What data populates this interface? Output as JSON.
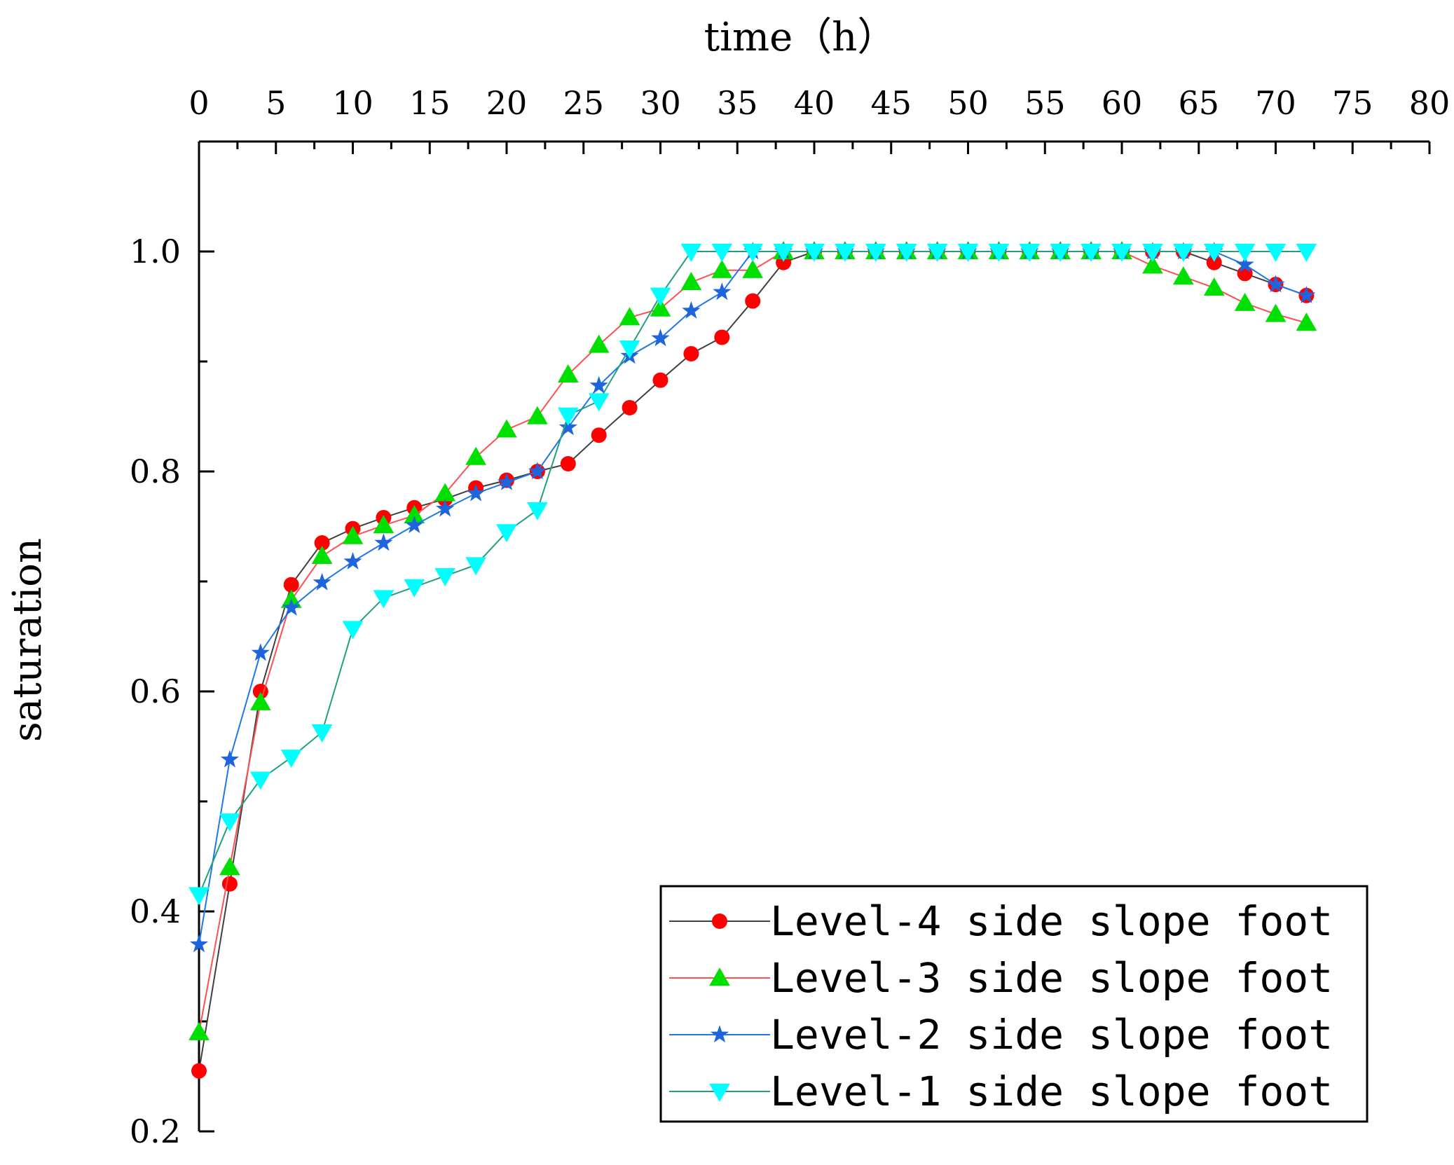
{
  "chart_data": {
    "type": "line",
    "title": "",
    "xlabel": "time（h）",
    "ylabel": "saturation",
    "xlim": [
      0,
      80
    ],
    "ylim": [
      0.2,
      1.1
    ],
    "x_ticks": [
      "0",
      "5",
      "10",
      "15",
      "20",
      "25",
      "30",
      "35",
      "40",
      "45",
      "50",
      "55",
      "60",
      "65",
      "70",
      "75",
      "80"
    ],
    "y_ticks": [
      "0.2",
      "0.4",
      "0.6",
      "0.8",
      "1.0"
    ],
    "x_axis_position": "top",
    "grid": false,
    "legend_position": "bottom-right",
    "x": [
      0,
      2,
      4,
      6,
      8,
      10,
      12,
      14,
      16,
      18,
      20,
      22,
      24,
      26,
      28,
      30,
      32,
      34,
      36,
      38,
      40,
      42,
      44,
      46,
      48,
      50,
      52,
      54,
      56,
      58,
      60,
      62,
      64,
      66,
      68,
      70,
      72
    ],
    "series": [
      {
        "name": "Level-4 side slope foot",
        "color": "#FF0000",
        "line_color": "#404040",
        "marker": "circle",
        "values": [
          0.255,
          0.425,
          0.6,
          0.697,
          0.735,
          0.748,
          0.758,
          0.767,
          0.775,
          0.785,
          0.792,
          0.8,
          0.807,
          0.833,
          0.858,
          0.883,
          0.907,
          0.922,
          0.955,
          0.99,
          1.0,
          1.0,
          1.0,
          1.0,
          1.0,
          1.0,
          1.0,
          1.0,
          1.0,
          1.0,
          1.0,
          1.0,
          1.0,
          0.99,
          0.98,
          0.97,
          0.96
        ]
      },
      {
        "name": "Level-3 side slope foot",
        "color": "#00E000",
        "line_color": "#FF5050",
        "marker": "triangle-up",
        "values": [
          0.29,
          0.44,
          0.59,
          0.683,
          0.723,
          0.741,
          0.751,
          0.76,
          0.78,
          0.813,
          0.838,
          0.85,
          0.888,
          0.915,
          0.94,
          0.948,
          0.972,
          0.983,
          0.983,
          1.0,
          1.0,
          1.0,
          1.0,
          1.0,
          1.0,
          1.0,
          1.0,
          1.0,
          1.0,
          1.0,
          1.0,
          0.987,
          0.977,
          0.967,
          0.953,
          0.943,
          0.935
        ]
      },
      {
        "name": "Level-2 side slope foot",
        "color": "#1E64DC",
        "line_color": "#1E78E6",
        "marker": "star",
        "values": [
          0.37,
          0.538,
          0.635,
          0.676,
          0.699,
          0.718,
          0.735,
          0.751,
          0.766,
          0.78,
          0.79,
          0.8,
          0.84,
          0.878,
          0.905,
          0.921,
          0.946,
          0.963,
          1.0,
          1.0,
          1.0,
          1.0,
          1.0,
          1.0,
          1.0,
          1.0,
          1.0,
          1.0,
          1.0,
          1.0,
          1.0,
          1.0,
          1.0,
          1.0,
          0.988,
          0.97,
          0.96
        ]
      },
      {
        "name": "Level-1 side slope foot",
        "color": "#00FFFF",
        "line_color": "#20A080",
        "marker": "triangle-down",
        "values": [
          0.415,
          0.482,
          0.52,
          0.54,
          0.563,
          0.657,
          0.685,
          0.695,
          0.705,
          0.715,
          0.745,
          0.765,
          0.851,
          0.864,
          0.912,
          0.96,
          1.0,
          1.0,
          1.0,
          1.0,
          1.0,
          1.0,
          1.0,
          1.0,
          1.0,
          1.0,
          1.0,
          1.0,
          1.0,
          1.0,
          1.0,
          1.0,
          1.0,
          1.0,
          1.0,
          1.0,
          1.0
        ]
      }
    ]
  }
}
